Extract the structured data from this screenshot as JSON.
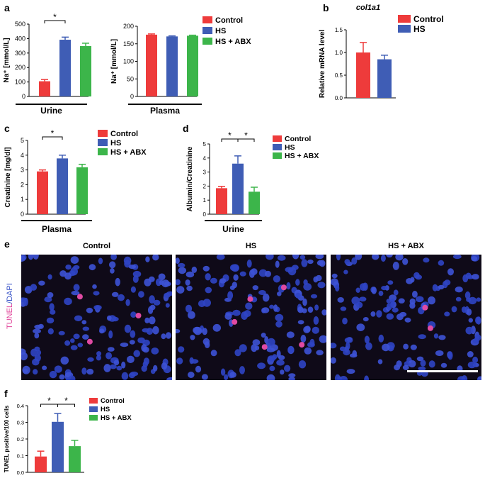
{
  "colors": {
    "control": "#ee3b3b",
    "hs": "#3f5db5",
    "abx": "#3cb54a"
  },
  "legend": [
    "Control",
    "HS",
    "HS + ABX"
  ],
  "legend_b": [
    "Control",
    "HS"
  ],
  "panel_labels": {
    "a": "a",
    "b": "b",
    "c": "c",
    "d": "d",
    "e": "e",
    "f": "f"
  },
  "significance": "*",
  "chart_data": [
    {
      "id": "a_urine",
      "type": "bar",
      "ylabel": "Na⁺ [mmol/L]",
      "xlabel": "Urine",
      "ylim": [
        0,
        500
      ],
      "yticks": [
        0,
        100,
        200,
        300,
        400,
        500
      ],
      "categories": [
        "Control",
        "HS",
        "HS + ABX"
      ],
      "values": [
        105,
        392,
        348
      ],
      "errors": [
        12,
        18,
        20
      ],
      "significance": [
        [
          0,
          1
        ]
      ]
    },
    {
      "id": "a_plasma",
      "type": "bar",
      "ylabel": "Na⁺ [mmol/L]",
      "xlabel": "Plasma",
      "ylim": [
        0,
        200
      ],
      "yticks": [
        0,
        50,
        100,
        150,
        200
      ],
      "categories": [
        "Control",
        "HS",
        "HS + ABX"
      ],
      "values": [
        176,
        171,
        173
      ],
      "errors": [
        2,
        1.5,
        1.5
      ],
      "significance": []
    },
    {
      "id": "b_col1a1",
      "type": "bar",
      "title": "col1a1",
      "ylabel": "Relative mRNA level",
      "xlabel": "",
      "ylim": [
        0,
        1.5
      ],
      "yticks": [
        0.0,
        0.5,
        1.0,
        1.5
      ],
      "categories": [
        "Control",
        "HS"
      ],
      "values": [
        1.0,
        0.85
      ],
      "errors": [
        0.22,
        0.09
      ],
      "significance": []
    },
    {
      "id": "c_creatinine",
      "type": "bar",
      "ylabel": "Creatinine [mg/dl]",
      "xlabel": "Plasma",
      "ylim": [
        0,
        5
      ],
      "yticks": [
        0,
        1,
        2,
        3,
        4,
        5
      ],
      "categories": [
        "Control",
        "HS",
        "HS + ABX"
      ],
      "values": [
        2.9,
        3.78,
        3.18
      ],
      "errors": [
        0.1,
        0.22,
        0.2
      ],
      "significance": [
        [
          0,
          1
        ]
      ]
    },
    {
      "id": "d_albumin",
      "type": "bar",
      "ylabel": "Albumin/Creatinine",
      "xlabel": "Urine",
      "ylim": [
        0,
        5
      ],
      "yticks": [
        0,
        1,
        2,
        3,
        4,
        5
      ],
      "categories": [
        "Control",
        "HS",
        "HS + ABX"
      ],
      "values": [
        1.85,
        3.6,
        1.6
      ],
      "errors": [
        0.13,
        0.55,
        0.32
      ],
      "significance": [
        [
          0,
          1
        ],
        [
          1,
          2
        ]
      ]
    },
    {
      "id": "f_tunel",
      "type": "bar",
      "ylabel": "TUNEL positive/100 cells",
      "xlabel": "",
      "ylim": [
        0,
        0.4
      ],
      "yticks": [
        0.0,
        0.1,
        0.2,
        0.3,
        0.4
      ],
      "categories": [
        "Control",
        "HS",
        "HS + ABX"
      ],
      "values": [
        0.095,
        0.303,
        0.157
      ],
      "errors": [
        0.032,
        0.05,
        0.035
      ],
      "significance": [
        [
          0,
          1
        ],
        [
          1,
          2
        ]
      ]
    }
  ],
  "micrographs": {
    "side_label_tunel": "TUNEL",
    "side_label_dapi": "/DAPI",
    "panels": [
      {
        "title": "Control",
        "pink_cells": 3
      },
      {
        "title": "HS",
        "pink_cells": 5
      },
      {
        "title": "HS + ABX",
        "pink_cells": 2
      }
    ]
  }
}
